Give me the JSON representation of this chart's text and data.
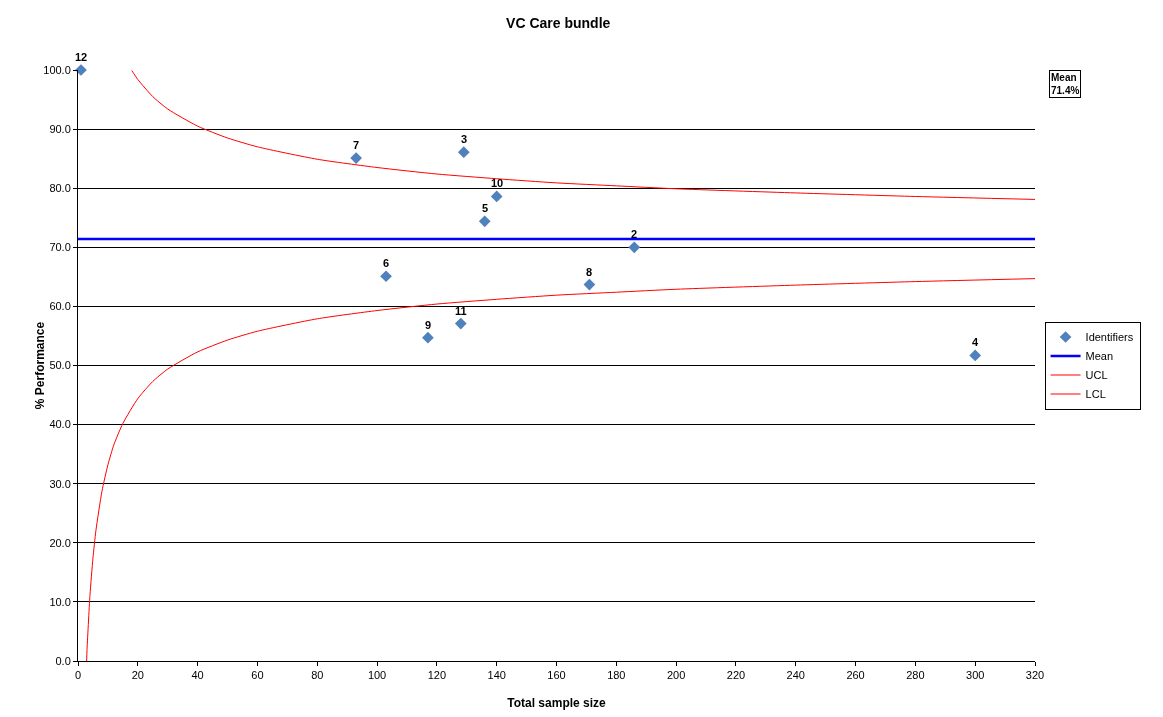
{
  "chart_data": {
    "type": "scatter",
    "title": "VC Care bundle",
    "xlabel": "Total sample size",
    "ylabel": "% Performance",
    "xlim": [
      0,
      320
    ],
    "xticks": [
      0,
      20,
      40,
      60,
      80,
      100,
      120,
      140,
      160,
      180,
      200,
      220,
      240,
      260,
      280,
      300,
      320
    ],
    "ylim": [
      0,
      100
    ],
    "yticks": [
      {
        "value": 0,
        "label": "0.0"
      },
      {
        "value": 10,
        "label": "10.0"
      },
      {
        "value": 20,
        "label": "20.0"
      },
      {
        "value": 30,
        "label": "30.0"
      },
      {
        "value": 40,
        "label": "40.0"
      },
      {
        "value": 50,
        "label": "50.0"
      },
      {
        "value": 60,
        "label": "60.0"
      },
      {
        "value": 70,
        "label": "70.0"
      },
      {
        "value": 80,
        "label": "80.0"
      },
      {
        "value": 90,
        "label": "90.0"
      },
      {
        "value": 100,
        "label": "100.0"
      }
    ],
    "grid": "y",
    "legend": "right",
    "annotations": [
      "Mean\n71.4%",
      {
        "text": "12",
        "x": 1,
        "y": 100
      },
      {
        "text": "2",
        "x": 186,
        "y": 70
      },
      {
        "text": "3",
        "x": 129,
        "y": 86.1
      },
      {
        "text": "4",
        "x": 300,
        "y": 51.7
      },
      {
        "text": "5",
        "x": 136,
        "y": 74.4
      },
      {
        "text": "6",
        "x": 103,
        "y": 65.1
      },
      {
        "text": "7",
        "x": 93,
        "y": 85.1
      },
      {
        "text": "8",
        "x": 171,
        "y": 63.7
      },
      {
        "text": "9",
        "x": 117,
        "y": 54.7
      },
      {
        "text": "10",
        "x": 140,
        "y": 78.6
      },
      {
        "text": "11",
        "x": 128,
        "y": 57.1
      }
    ],
    "series": [
      {
        "name": "Identifiers",
        "marker": "diamond",
        "color": "#4f81bd",
        "x": [
          1,
          186,
          129,
          300,
          136,
          103,
          93,
          171,
          117,
          140,
          128
        ],
        "values": [
          100,
          70,
          86.1,
          51.7,
          74.4,
          65.1,
          85.1,
          63.7,
          54.7,
          78.6,
          57.1
        ]
      },
      {
        "name": "Mean",
        "type": "line",
        "marker": "none",
        "color": "#0000ff",
        "x": [
          0,
          320
        ],
        "values": [
          71.4,
          71.4
        ]
      },
      {
        "name": "UCL",
        "type": "line",
        "marker": "none",
        "color": "#ff0000",
        "x": [
          18,
          20,
          25,
          30,
          40,
          50,
          60,
          80,
          100,
          120,
          140,
          160,
          180,
          200,
          240,
          280,
          320
        ],
        "values": [
          99.9,
          98.4,
          95.5,
          93.4,
          90.5,
          88.5,
          87.0,
          84.9,
          83.5,
          82.4,
          81.6,
          80.9,
          80.4,
          79.9,
          79.2,
          78.6,
          78.1
        ]
      },
      {
        "name": "LCL",
        "type": "line",
        "marker": "none",
        "color": "#ff0000",
        "x": [
          2.9,
          3,
          4,
          5,
          6,
          8,
          10,
          12,
          15,
          20,
          25,
          30,
          40,
          50,
          60,
          80,
          100,
          120,
          140,
          160,
          180,
          200,
          240,
          280,
          320
        ],
        "values": [
          0,
          1.7,
          11.1,
          17.4,
          22.1,
          28.7,
          33.2,
          36.6,
          40.2,
          44.4,
          47.3,
          49.4,
          52.3,
          54.3,
          55.8,
          57.9,
          59.3,
          60.4,
          61.2,
          61.9,
          62.4,
          62.9,
          63.6,
          64.2,
          64.7
        ]
      }
    ]
  }
}
